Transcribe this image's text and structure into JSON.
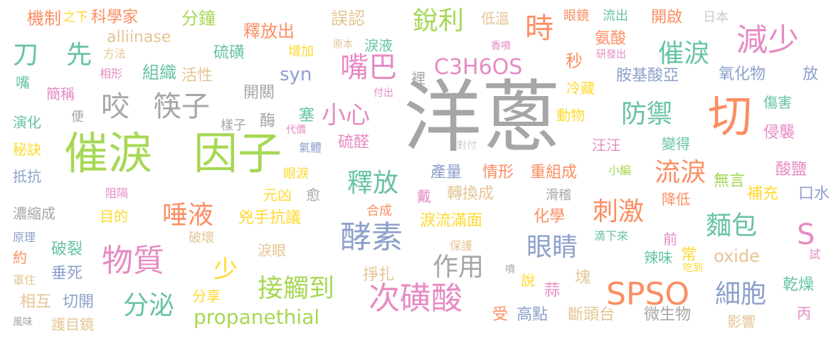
{
  "words": [
    {
      "text": "洋蔥",
      "color": "#a6a6a6"
    },
    {
      "text": "催淚",
      "color": "#a6d854"
    },
    {
      "text": "因子",
      "color": "#a6d854"
    },
    {
      "text": "切",
      "color": "#fc8d62"
    },
    {
      "text": "SPSO",
      "color": "#fc8d62"
    },
    {
      "text": "次磺酸",
      "color": "#e78ac3"
    },
    {
      "text": "酵素",
      "color": "#8da0cb"
    },
    {
      "text": "物質",
      "color": "#e78ac3"
    },
    {
      "text": "減少",
      "color": "#e78ac3"
    },
    {
      "text": "咬",
      "color": "#a6a6a6"
    },
    {
      "text": "筷子",
      "color": "#a6a6a6"
    },
    {
      "text": "嘴巴",
      "color": "#e78ac3"
    },
    {
      "text": "時",
      "color": "#fc8d62"
    },
    {
      "text": "刀",
      "color": "#66c2a5"
    },
    {
      "text": "先",
      "color": "#66c2a5"
    },
    {
      "text": "銳利",
      "color": "#a6d854"
    },
    {
      "text": "催淚",
      "color": "#66c2a5"
    },
    {
      "text": "防禦",
      "color": "#66c2a5"
    },
    {
      "text": "流淚",
      "color": "#fc8d62"
    },
    {
      "text": "刺激",
      "color": "#fc8d62"
    },
    {
      "text": "細胞",
      "color": "#8da0cb"
    },
    {
      "text": "眼睛",
      "color": "#8da0cb"
    },
    {
      "text": "麵包",
      "color": "#66c2a5"
    },
    {
      "text": "唾液",
      "color": "#fc8d62"
    },
    {
      "text": "釋放",
      "color": "#66c2a5"
    },
    {
      "text": "接觸到",
      "color": "#a6d854"
    },
    {
      "text": "分泌",
      "color": "#66c2a5"
    },
    {
      "text": "作用",
      "color": "#a6a6a6"
    },
    {
      "text": "小心",
      "color": "#e78ac3"
    },
    {
      "text": "C3H6OS",
      "color": "#e78ac3"
    },
    {
      "text": "alliinase",
      "color": "#e5c494"
    },
    {
      "text": "propanethial",
      "color": "#a6d854"
    },
    {
      "text": "oxide",
      "color": "#e5c494"
    },
    {
      "text": "S",
      "color": "#e78ac3"
    },
    {
      "text": "syn",
      "color": "#8da0cb"
    },
    {
      "text": "機制",
      "color": "#fc8d62"
    },
    {
      "text": "之下",
      "color": "#ffd92f"
    },
    {
      "text": "科學家",
      "color": "#fc8d62"
    },
    {
      "text": "分鐘",
      "color": "#a6d854"
    },
    {
      "text": "釋放出",
      "color": "#fc8d62"
    },
    {
      "text": "誤認",
      "color": "#e5c494"
    },
    {
      "text": "低溫",
      "color": "#e5c494"
    },
    {
      "text": "眼鏡",
      "color": "#fc8d62"
    },
    {
      "text": "流出",
      "color": "#66c2a5"
    },
    {
      "text": "開啟",
      "color": "#fc8d62"
    },
    {
      "text": "日本",
      "color": "#cccccc"
    },
    {
      "text": "氨酸",
      "color": "#fc8d62"
    },
    {
      "text": "研發出",
      "color": "#e78ac3"
    },
    {
      "text": "方法",
      "color": "#e5c494"
    },
    {
      "text": "組織",
      "color": "#66c2a5"
    },
    {
      "text": "硫磺",
      "color": "#66c2a5"
    },
    {
      "text": "增加",
      "color": "#ffd92f"
    },
    {
      "text": "原本",
      "color": "#e5c494"
    },
    {
      "text": "淚液",
      "color": "#66c2a5"
    },
    {
      "text": "香噴",
      "color": "#e78ac3"
    },
    {
      "text": "秒",
      "color": "#fc8d62"
    },
    {
      "text": "嘴",
      "color": "#66c2a5"
    },
    {
      "text": "相形",
      "color": "#e78ac3"
    },
    {
      "text": "活性",
      "color": "#e5c494"
    },
    {
      "text": "裡",
      "color": "#a6a6a6"
    },
    {
      "text": "胺基酸亞",
      "color": "#8da0cb"
    },
    {
      "text": "氧化物",
      "color": "#8da0cb"
    },
    {
      "text": "放",
      "color": "#8da0cb"
    },
    {
      "text": "簡稱",
      "color": "#e78ac3"
    },
    {
      "text": "開關",
      "color": "#a6a6a6"
    },
    {
      "text": "付出",
      "color": "#e78ac3"
    },
    {
      "text": "冷藏",
      "color": "#ffd92f"
    },
    {
      "text": "傷害",
      "color": "#66c2a5"
    },
    {
      "text": "演化",
      "color": "#66c2a5"
    },
    {
      "text": "便",
      "color": "#a6a6a6"
    },
    {
      "text": "塞",
      "color": "#66c2a5"
    },
    {
      "text": "樣子",
      "color": "#a6a6a6"
    },
    {
      "text": "酶",
      "color": "#a6a6a6"
    },
    {
      "text": "動物",
      "color": "#ffd92f"
    },
    {
      "text": "侵襲",
      "color": "#e78ac3"
    },
    {
      "text": "秘訣",
      "color": "#ffd92f"
    },
    {
      "text": "代價",
      "color": "#e78ac3"
    },
    {
      "text": "氣體",
      "color": "#8da0cb"
    },
    {
      "text": "硫醛",
      "color": "#e78ac3"
    },
    {
      "text": "對付",
      "color": "#cccccc"
    },
    {
      "text": "汪汪",
      "color": "#e78ac3"
    },
    {
      "text": "變得",
      "color": "#66c2a5"
    },
    {
      "text": "抵抗",
      "color": "#8da0cb"
    },
    {
      "text": "眼淚",
      "color": "#ffd92f"
    },
    {
      "text": "產量",
      "color": "#8da0cb"
    },
    {
      "text": "情形",
      "color": "#fc8d62"
    },
    {
      "text": "重組成",
      "color": "#fc8d62"
    },
    {
      "text": "小編",
      "color": "#a6d854"
    },
    {
      "text": "無言",
      "color": "#a6d854"
    },
    {
      "text": "酸鹽",
      "color": "#e78ac3"
    },
    {
      "text": "阻隔",
      "color": "#e78ac3"
    },
    {
      "text": "元凶",
      "color": "#ffd92f"
    },
    {
      "text": "愈",
      "color": "#a6a6a6"
    },
    {
      "text": "戴",
      "color": "#e78ac3"
    },
    {
      "text": "轉換成",
      "color": "#e5c494"
    },
    {
      "text": "滑稽",
      "color": "#a6a6a6"
    },
    {
      "text": "降低",
      "color": "#fc8d62"
    },
    {
      "text": "補充",
      "color": "#ffd92f"
    },
    {
      "text": "口水",
      "color": "#8da0cb"
    },
    {
      "text": "濃縮成",
      "color": "#a6a6a6"
    },
    {
      "text": "目的",
      "color": "#ffd92f"
    },
    {
      "text": "兇手抗議",
      "color": "#ffd92f"
    },
    {
      "text": "合成",
      "color": "#fc8d62"
    },
    {
      "text": "化學",
      "color": "#fc8d62"
    },
    {
      "text": "淚流滿面",
      "color": "#ffd92f"
    },
    {
      "text": "原理",
      "color": "#8da0cb"
    },
    {
      "text": "破壞",
      "color": "#e5c494"
    },
    {
      "text": "滴下來",
      "color": "#66c2a5"
    },
    {
      "text": "約",
      "color": "#fc8d62"
    },
    {
      "text": "破裂",
      "color": "#66c2a5"
    },
    {
      "text": "淚眼",
      "color": "#e5c494"
    },
    {
      "text": "保護",
      "color": "#e5c494"
    },
    {
      "text": "前",
      "color": "#e78ac3"
    },
    {
      "text": "辣味",
      "color": "#66c2a5"
    },
    {
      "text": "常",
      "color": "#ffd92f"
    },
    {
      "text": "試",
      "color": "#e78ac3"
    },
    {
      "text": "少",
      "color": "#ffd92f"
    },
    {
      "text": "垂死",
      "color": "#8da0cb"
    },
    {
      "text": "罩住",
      "color": "#e5c494"
    },
    {
      "text": "噴",
      "color": "#a6a6a6"
    },
    {
      "text": "吃到",
      "color": "#ffd92f"
    },
    {
      "text": "掙扎",
      "color": "#e5c494"
    },
    {
      "text": "說",
      "color": "#ffd92f"
    },
    {
      "text": "蒜",
      "color": "#e78ac3"
    },
    {
      "text": "塊",
      "color": "#e5c494"
    },
    {
      "text": "乾燥",
      "color": "#66c2a5"
    },
    {
      "text": "相互",
      "color": "#e5c494"
    },
    {
      "text": "切開",
      "color": "#8da0cb"
    },
    {
      "text": "分享",
      "color": "#ffd92f"
    },
    {
      "text": "風味",
      "color": "#a6a6a6"
    },
    {
      "text": "護目鏡",
      "color": "#e5c494"
    },
    {
      "text": "受",
      "color": "#fc8d62"
    },
    {
      "text": "高點",
      "color": "#8da0cb"
    },
    {
      "text": "斷頭台",
      "color": "#e5c494"
    },
    {
      "text": "微生物",
      "color": "#a6a6a6"
    },
    {
      "text": "影響",
      "color": "#e5c494"
    },
    {
      "text": "丙",
      "color": "#e78ac3"
    }
  ]
}
